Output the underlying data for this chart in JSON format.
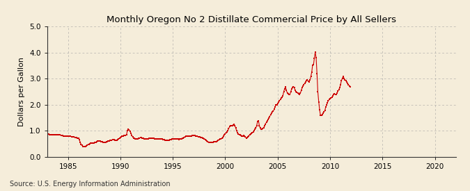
{
  "title": "Monthly Oregon No 2 Distillate Commercial Price by All Sellers",
  "ylabel": "Dollars per Gallon",
  "source": "Source: U.S. Energy Information Administration",
  "background_color": "#f5edda",
  "plot_bg_color": "#fdf8ee",
  "line_color": "#cc0000",
  "xlim": [
    1983,
    2022
  ],
  "ylim": [
    0.0,
    5.0
  ],
  "yticks": [
    0.0,
    1.0,
    2.0,
    3.0,
    4.0,
    5.0
  ],
  "xticks": [
    1985,
    1990,
    1995,
    2000,
    2005,
    2010,
    2015,
    2020
  ],
  "data": [
    [
      1983.0,
      0.88
    ],
    [
      1983.08,
      0.87
    ],
    [
      1983.17,
      0.86
    ],
    [
      1983.25,
      0.85
    ],
    [
      1983.33,
      0.85
    ],
    [
      1983.42,
      0.84
    ],
    [
      1983.5,
      0.83
    ],
    [
      1983.58,
      0.83
    ],
    [
      1983.67,
      0.84
    ],
    [
      1983.75,
      0.84
    ],
    [
      1983.83,
      0.84
    ],
    [
      1983.92,
      0.84
    ],
    [
      1984.0,
      0.85
    ],
    [
      1984.08,
      0.84
    ],
    [
      1984.17,
      0.84
    ],
    [
      1984.25,
      0.83
    ],
    [
      1984.33,
      0.82
    ],
    [
      1984.42,
      0.82
    ],
    [
      1984.5,
      0.81
    ],
    [
      1984.58,
      0.8
    ],
    [
      1984.67,
      0.8
    ],
    [
      1984.75,
      0.8
    ],
    [
      1984.83,
      0.8
    ],
    [
      1984.92,
      0.8
    ],
    [
      1985.0,
      0.79
    ],
    [
      1985.08,
      0.79
    ],
    [
      1985.17,
      0.78
    ],
    [
      1985.25,
      0.78
    ],
    [
      1985.33,
      0.77
    ],
    [
      1985.42,
      0.77
    ],
    [
      1985.5,
      0.76
    ],
    [
      1985.58,
      0.75
    ],
    [
      1985.67,
      0.74
    ],
    [
      1985.75,
      0.73
    ],
    [
      1985.83,
      0.73
    ],
    [
      1985.92,
      0.72
    ],
    [
      1986.0,
      0.71
    ],
    [
      1986.08,
      0.65
    ],
    [
      1986.17,
      0.55
    ],
    [
      1986.25,
      0.48
    ],
    [
      1986.33,
      0.43
    ],
    [
      1986.42,
      0.4
    ],
    [
      1986.5,
      0.38
    ],
    [
      1986.58,
      0.38
    ],
    [
      1986.67,
      0.4
    ],
    [
      1986.75,
      0.42
    ],
    [
      1986.83,
      0.44
    ],
    [
      1986.92,
      0.46
    ],
    [
      1987.0,
      0.48
    ],
    [
      1987.08,
      0.5
    ],
    [
      1987.17,
      0.51
    ],
    [
      1987.25,
      0.52
    ],
    [
      1987.33,
      0.53
    ],
    [
      1987.42,
      0.53
    ],
    [
      1987.5,
      0.53
    ],
    [
      1987.58,
      0.54
    ],
    [
      1987.67,
      0.55
    ],
    [
      1987.75,
      0.57
    ],
    [
      1987.83,
      0.59
    ],
    [
      1987.92,
      0.61
    ],
    [
      1988.0,
      0.6
    ],
    [
      1988.08,
      0.59
    ],
    [
      1988.17,
      0.58
    ],
    [
      1988.25,
      0.57
    ],
    [
      1988.33,
      0.56
    ],
    [
      1988.42,
      0.55
    ],
    [
      1988.5,
      0.55
    ],
    [
      1988.58,
      0.56
    ],
    [
      1988.67,
      0.57
    ],
    [
      1988.75,
      0.58
    ],
    [
      1988.83,
      0.59
    ],
    [
      1988.92,
      0.6
    ],
    [
      1989.0,
      0.62
    ],
    [
      1989.08,
      0.63
    ],
    [
      1989.17,
      0.64
    ],
    [
      1989.25,
      0.65
    ],
    [
      1989.33,
      0.66
    ],
    [
      1989.42,
      0.65
    ],
    [
      1989.5,
      0.64
    ],
    [
      1989.58,
      0.63
    ],
    [
      1989.67,
      0.63
    ],
    [
      1989.75,
      0.65
    ],
    [
      1989.83,
      0.68
    ],
    [
      1989.92,
      0.72
    ],
    [
      1990.0,
      0.74
    ],
    [
      1990.08,
      0.76
    ],
    [
      1990.17,
      0.79
    ],
    [
      1990.25,
      0.8
    ],
    [
      1990.33,
      0.82
    ],
    [
      1990.42,
      0.82
    ],
    [
      1990.5,
      0.82
    ],
    [
      1990.58,
      0.85
    ],
    [
      1990.67,
      1.0
    ],
    [
      1990.75,
      1.05
    ],
    [
      1990.83,
      1.02
    ],
    [
      1990.92,
      0.98
    ],
    [
      1991.0,
      0.9
    ],
    [
      1991.08,
      0.82
    ],
    [
      1991.17,
      0.76
    ],
    [
      1991.25,
      0.72
    ],
    [
      1991.33,
      0.7
    ],
    [
      1991.42,
      0.68
    ],
    [
      1991.5,
      0.67
    ],
    [
      1991.58,
      0.67
    ],
    [
      1991.67,
      0.68
    ],
    [
      1991.75,
      0.7
    ],
    [
      1991.83,
      0.72
    ],
    [
      1991.92,
      0.73
    ],
    [
      1992.0,
      0.73
    ],
    [
      1992.08,
      0.72
    ],
    [
      1992.17,
      0.7
    ],
    [
      1992.25,
      0.69
    ],
    [
      1992.33,
      0.68
    ],
    [
      1992.42,
      0.68
    ],
    [
      1992.5,
      0.68
    ],
    [
      1992.58,
      0.68
    ],
    [
      1992.67,
      0.69
    ],
    [
      1992.75,
      0.7
    ],
    [
      1992.83,
      0.71
    ],
    [
      1992.92,
      0.72
    ],
    [
      1993.0,
      0.72
    ],
    [
      1993.08,
      0.71
    ],
    [
      1993.17,
      0.7
    ],
    [
      1993.25,
      0.69
    ],
    [
      1993.33,
      0.68
    ],
    [
      1993.42,
      0.67
    ],
    [
      1993.5,
      0.67
    ],
    [
      1993.58,
      0.67
    ],
    [
      1993.67,
      0.67
    ],
    [
      1993.75,
      0.67
    ],
    [
      1993.83,
      0.67
    ],
    [
      1993.92,
      0.67
    ],
    [
      1994.0,
      0.67
    ],
    [
      1994.08,
      0.66
    ],
    [
      1994.17,
      0.65
    ],
    [
      1994.25,
      0.64
    ],
    [
      1994.33,
      0.63
    ],
    [
      1994.42,
      0.62
    ],
    [
      1994.5,
      0.63
    ],
    [
      1994.58,
      0.63
    ],
    [
      1994.67,
      0.64
    ],
    [
      1994.75,
      0.65
    ],
    [
      1994.83,
      0.66
    ],
    [
      1994.92,
      0.67
    ],
    [
      1995.0,
      0.68
    ],
    [
      1995.08,
      0.68
    ],
    [
      1995.17,
      0.68
    ],
    [
      1995.25,
      0.68
    ],
    [
      1995.33,
      0.68
    ],
    [
      1995.42,
      0.68
    ],
    [
      1995.5,
      0.67
    ],
    [
      1995.58,
      0.66
    ],
    [
      1995.67,
      0.67
    ],
    [
      1995.75,
      0.68
    ],
    [
      1995.83,
      0.69
    ],
    [
      1995.92,
      0.7
    ],
    [
      1996.0,
      0.72
    ],
    [
      1996.08,
      0.74
    ],
    [
      1996.17,
      0.76
    ],
    [
      1996.25,
      0.78
    ],
    [
      1996.33,
      0.8
    ],
    [
      1996.42,
      0.8
    ],
    [
      1996.5,
      0.79
    ],
    [
      1996.58,
      0.79
    ],
    [
      1996.67,
      0.79
    ],
    [
      1996.75,
      0.8
    ],
    [
      1996.83,
      0.81
    ],
    [
      1996.92,
      0.82
    ],
    [
      1997.0,
      0.82
    ],
    [
      1997.08,
      0.81
    ],
    [
      1997.17,
      0.8
    ],
    [
      1997.25,
      0.79
    ],
    [
      1997.33,
      0.78
    ],
    [
      1997.42,
      0.77
    ],
    [
      1997.5,
      0.76
    ],
    [
      1997.58,
      0.75
    ],
    [
      1997.67,
      0.74
    ],
    [
      1997.75,
      0.73
    ],
    [
      1997.83,
      0.72
    ],
    [
      1997.92,
      0.71
    ],
    [
      1998.0,
      0.69
    ],
    [
      1998.08,
      0.66
    ],
    [
      1998.17,
      0.63
    ],
    [
      1998.25,
      0.6
    ],
    [
      1998.33,
      0.58
    ],
    [
      1998.42,
      0.56
    ],
    [
      1998.5,
      0.55
    ],
    [
      1998.58,
      0.54
    ],
    [
      1998.67,
      0.54
    ],
    [
      1998.75,
      0.55
    ],
    [
      1998.83,
      0.56
    ],
    [
      1998.92,
      0.57
    ],
    [
      1999.0,
      0.57
    ],
    [
      1999.08,
      0.57
    ],
    [
      1999.17,
      0.58
    ],
    [
      1999.25,
      0.6
    ],
    [
      1999.33,
      0.63
    ],
    [
      1999.42,
      0.65
    ],
    [
      1999.5,
      0.67
    ],
    [
      1999.58,
      0.68
    ],
    [
      1999.67,
      0.7
    ],
    [
      1999.75,
      0.74
    ],
    [
      1999.83,
      0.79
    ],
    [
      1999.92,
      0.84
    ],
    [
      2000.0,
      0.88
    ],
    [
      2000.08,
      0.92
    ],
    [
      2000.17,
      0.95
    ],
    [
      2000.25,
      1.0
    ],
    [
      2000.33,
      1.08
    ],
    [
      2000.42,
      1.15
    ],
    [
      2000.5,
      1.18
    ],
    [
      2000.58,
      1.2
    ],
    [
      2000.67,
      1.18
    ],
    [
      2000.75,
      1.22
    ],
    [
      2000.83,
      1.25
    ],
    [
      2000.92,
      1.2
    ],
    [
      2001.0,
      1.1
    ],
    [
      2001.08,
      1.0
    ],
    [
      2001.17,
      0.92
    ],
    [
      2001.25,
      0.88
    ],
    [
      2001.33,
      0.85
    ],
    [
      2001.42,
      0.83
    ],
    [
      2001.5,
      0.82
    ],
    [
      2001.58,
      0.8
    ],
    [
      2001.67,
      0.8
    ],
    [
      2001.75,
      0.82
    ],
    [
      2001.83,
      0.8
    ],
    [
      2001.92,
      0.75
    ],
    [
      2002.0,
      0.72
    ],
    [
      2002.08,
      0.73
    ],
    [
      2002.17,
      0.75
    ],
    [
      2002.25,
      0.8
    ],
    [
      2002.33,
      0.85
    ],
    [
      2002.42,
      0.88
    ],
    [
      2002.5,
      0.9
    ],
    [
      2002.58,
      0.92
    ],
    [
      2002.67,
      0.95
    ],
    [
      2002.75,
      1.0
    ],
    [
      2002.83,
      1.05
    ],
    [
      2002.92,
      1.1
    ],
    [
      2003.0,
      1.2
    ],
    [
      2003.08,
      1.35
    ],
    [
      2003.17,
      1.38
    ],
    [
      2003.25,
      1.2
    ],
    [
      2003.33,
      1.1
    ],
    [
      2003.42,
      1.05
    ],
    [
      2003.5,
      1.05
    ],
    [
      2003.58,
      1.08
    ],
    [
      2003.67,
      1.12
    ],
    [
      2003.75,
      1.18
    ],
    [
      2003.83,
      1.25
    ],
    [
      2003.92,
      1.32
    ],
    [
      2004.0,
      1.38
    ],
    [
      2004.08,
      1.42
    ],
    [
      2004.17,
      1.48
    ],
    [
      2004.25,
      1.55
    ],
    [
      2004.33,
      1.62
    ],
    [
      2004.42,
      1.68
    ],
    [
      2004.5,
      1.72
    ],
    [
      2004.58,
      1.75
    ],
    [
      2004.67,
      1.82
    ],
    [
      2004.75,
      1.92
    ],
    [
      2004.83,
      1.98
    ],
    [
      2004.92,
      2.0
    ],
    [
      2005.0,
      2.05
    ],
    [
      2005.08,
      2.1
    ],
    [
      2005.17,
      2.15
    ],
    [
      2005.25,
      2.2
    ],
    [
      2005.33,
      2.25
    ],
    [
      2005.42,
      2.28
    ],
    [
      2005.5,
      2.35
    ],
    [
      2005.58,
      2.5
    ],
    [
      2005.67,
      2.62
    ],
    [
      2005.75,
      2.68
    ],
    [
      2005.83,
      2.55
    ],
    [
      2005.92,
      2.45
    ],
    [
      2006.0,
      2.42
    ],
    [
      2006.08,
      2.38
    ],
    [
      2006.17,
      2.4
    ],
    [
      2006.25,
      2.5
    ],
    [
      2006.33,
      2.6
    ],
    [
      2006.42,
      2.65
    ],
    [
      2006.5,
      2.7
    ],
    [
      2006.58,
      2.65
    ],
    [
      2006.67,
      2.55
    ],
    [
      2006.75,
      2.5
    ],
    [
      2006.83,
      2.48
    ],
    [
      2006.92,
      2.45
    ],
    [
      2007.0,
      2.42
    ],
    [
      2007.08,
      2.4
    ],
    [
      2007.17,
      2.45
    ],
    [
      2007.25,
      2.55
    ],
    [
      2007.33,
      2.65
    ],
    [
      2007.42,
      2.72
    ],
    [
      2007.5,
      2.78
    ],
    [
      2007.58,
      2.82
    ],
    [
      2007.67,
      2.88
    ],
    [
      2007.75,
      2.92
    ],
    [
      2007.83,
      2.95
    ],
    [
      2007.92,
      2.9
    ],
    [
      2008.0,
      2.88
    ],
    [
      2008.08,
      2.95
    ],
    [
      2008.17,
      3.1
    ],
    [
      2008.25,
      3.25
    ],
    [
      2008.33,
      3.52
    ],
    [
      2008.42,
      3.55
    ],
    [
      2008.5,
      3.78
    ],
    [
      2008.58,
      4.02
    ],
    [
      2008.67,
      3.8
    ],
    [
      2008.75,
      3.2
    ],
    [
      2008.83,
      2.5
    ],
    [
      2008.92,
      2.1
    ],
    [
      2009.0,
      1.8
    ],
    [
      2009.08,
      1.6
    ],
    [
      2009.17,
      1.58
    ],
    [
      2009.25,
      1.62
    ],
    [
      2009.33,
      1.68
    ],
    [
      2009.42,
      1.72
    ],
    [
      2009.5,
      1.78
    ],
    [
      2009.58,
      1.9
    ],
    [
      2009.67,
      2.0
    ],
    [
      2009.75,
      2.08
    ],
    [
      2009.83,
      2.15
    ],
    [
      2009.92,
      2.2
    ],
    [
      2010.0,
      2.22
    ],
    [
      2010.08,
      2.25
    ],
    [
      2010.17,
      2.28
    ],
    [
      2010.25,
      2.35
    ],
    [
      2010.33,
      2.4
    ],
    [
      2010.42,
      2.42
    ],
    [
      2010.5,
      2.38
    ],
    [
      2010.58,
      2.4
    ],
    [
      2010.67,
      2.45
    ],
    [
      2010.75,
      2.52
    ],
    [
      2010.83,
      2.58
    ],
    [
      2010.92,
      2.65
    ],
    [
      2011.0,
      2.78
    ],
    [
      2011.08,
      2.92
    ],
    [
      2011.17,
      3.02
    ],
    [
      2011.25,
      3.08
    ],
    [
      2011.33,
      3.0
    ],
    [
      2011.42,
      2.95
    ],
    [
      2011.5,
      2.92
    ],
    [
      2011.58,
      2.88
    ],
    [
      2011.67,
      2.82
    ],
    [
      2011.75,
      2.78
    ],
    [
      2011.83,
      2.72
    ],
    [
      2011.92,
      2.68
    ]
  ]
}
